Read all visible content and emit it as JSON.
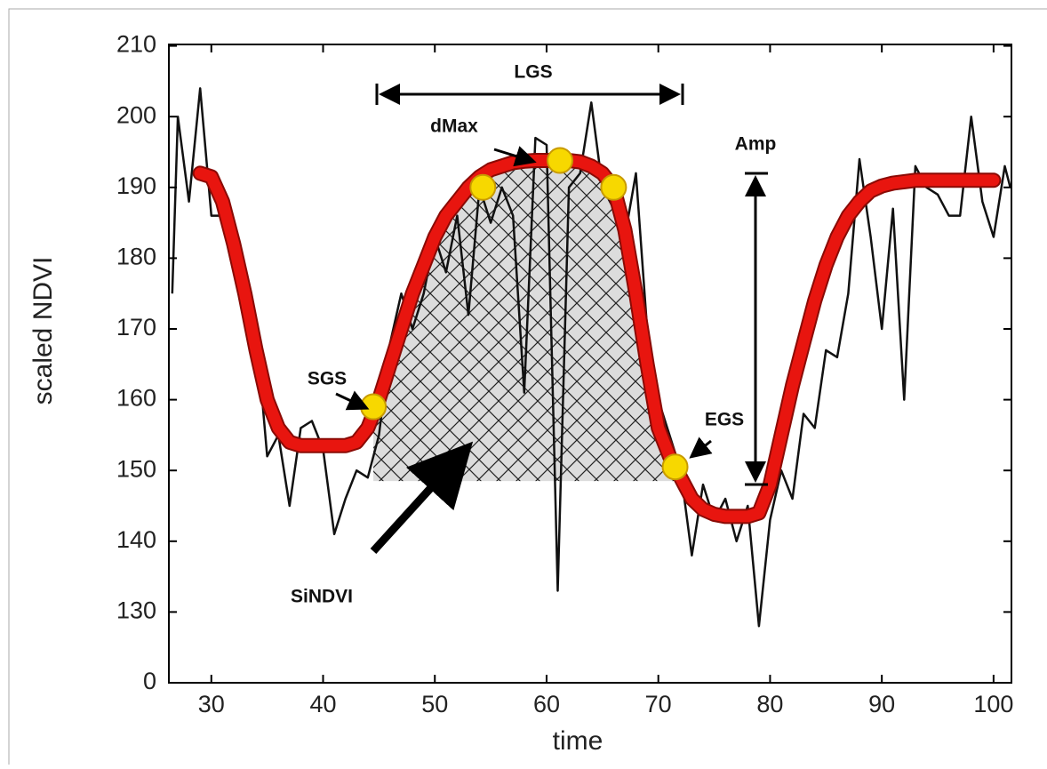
{
  "chart_data": {
    "type": "line",
    "x_label": "time",
    "y_label": "scaled NDVI",
    "xlim": [
      26.2,
      101.6
    ],
    "ylim": [
      120,
      210.2
    ],
    "xticks": [
      30,
      40,
      50,
      60,
      70,
      80,
      90,
      100
    ],
    "yticks": [
      {
        "value": 120,
        "label": "0"
      },
      130,
      140,
      150,
      160,
      170,
      180,
      190,
      200,
      210
    ],
    "raw": {
      "color": "#111111",
      "x": [
        26.5,
        27,
        28,
        29,
        30,
        31,
        32,
        33,
        34,
        35,
        36,
        37,
        38,
        39,
        40,
        41,
        42,
        43,
        44,
        45,
        46,
        47,
        48,
        49,
        50,
        51,
        52,
        53,
        54,
        55,
        56,
        57,
        58,
        59,
        60,
        61,
        62,
        63,
        64,
        65,
        66,
        67,
        68,
        69,
        70,
        71,
        72,
        73,
        74,
        75,
        76,
        77,
        78,
        79,
        80,
        81,
        82,
        83,
        84,
        85,
        86,
        87,
        88,
        89,
        90,
        91,
        92,
        93,
        94,
        95,
        96,
        97,
        98,
        99,
        100,
        101,
        101.5
      ],
      "values": [
        175,
        200,
        188,
        204,
        186,
        186,
        183,
        178,
        170,
        152,
        155,
        145,
        156,
        157,
        153,
        141,
        146,
        150,
        149,
        155,
        168,
        175,
        170,
        175,
        183,
        178,
        186,
        172,
        190,
        185,
        190,
        186,
        161,
        197,
        196,
        133,
        190,
        192,
        202,
        190,
        187,
        183,
        192,
        170,
        160,
        155,
        150,
        138,
        148,
        143,
        146,
        140,
        145,
        128,
        143,
        150,
        146,
        158,
        156,
        167,
        166,
        175,
        194,
        183,
        170,
        187,
        160,
        193,
        190,
        189,
        186,
        186,
        200,
        188,
        183,
        193,
        190
      ]
    },
    "smoothed": {
      "color": "#e8150f",
      "x": [
        29,
        30,
        31,
        32,
        33,
        34,
        35,
        36,
        37,
        38,
        39,
        40,
        41,
        42,
        43,
        44,
        45,
        46,
        47,
        48,
        49,
        50,
        51,
        52,
        53,
        54,
        55,
        56,
        57,
        58,
        59,
        60,
        61,
        62,
        63,
        64,
        65,
        66,
        67,
        68,
        69,
        70,
        71,
        72,
        73,
        74,
        75,
        76,
        77,
        78,
        79,
        80,
        81,
        82,
        83,
        84,
        85,
        86,
        87,
        88,
        89,
        90,
        91,
        92,
        93,
        94,
        95,
        96,
        97,
        98,
        99,
        100
      ],
      "values": [
        192,
        191.5,
        188,
        182,
        175,
        167,
        160,
        156,
        154,
        153.5,
        153.5,
        153.5,
        153.5,
        153.5,
        154,
        156,
        160,
        165,
        170,
        175,
        179,
        183,
        186,
        188,
        190,
        191.5,
        192.5,
        193,
        193.5,
        193.7,
        193.8,
        193.8,
        193.8,
        193.8,
        193.6,
        193,
        192,
        190,
        184,
        175,
        165,
        156,
        152,
        149,
        146,
        144.5,
        143.8,
        143.5,
        143.5,
        143.5,
        144,
        148,
        155,
        162,
        168,
        174,
        179,
        183,
        186,
        188,
        189.5,
        190.2,
        190.6,
        190.8,
        191,
        191,
        191,
        191,
        191,
        191,
        191,
        191
      ]
    },
    "points": {
      "color": "#f7d800",
      "x": [
        44.5,
        54.3,
        61.2,
        66,
        71.5
      ],
      "values": [
        159,
        190,
        193.8,
        190,
        150.5
      ]
    },
    "shaded_region": {
      "x": [
        44.5,
        71.5
      ],
      "base": 148.5
    },
    "annotations": [
      "LGS",
      "dMax",
      "Amp",
      "SGS",
      "EGS",
      "SiNDVI"
    ]
  }
}
